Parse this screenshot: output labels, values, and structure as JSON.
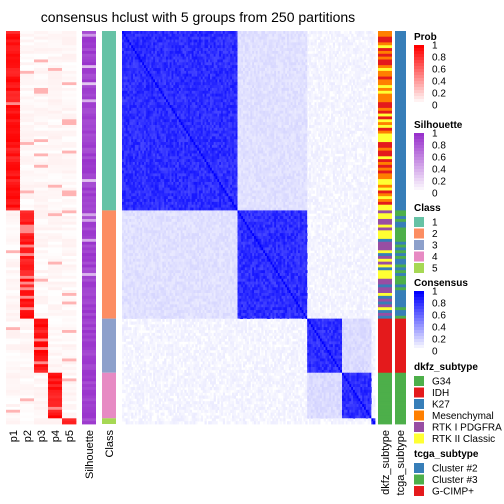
{
  "chart_data": {
    "type": "heatmap",
    "title": "consensus hclust with 5 groups from 250 partitions",
    "column_labels": {
      "prob": [
        "p1",
        "p2",
        "p3",
        "p4",
        "p5"
      ],
      "silhouette": "Silhouette",
      "class": "Class",
      "dkfz": "dkfz_subtype",
      "tcga": "tcga_subtype"
    },
    "groups": [
      {
        "class": "1",
        "n": 63
      },
      {
        "class": "2",
        "n": 38
      },
      {
        "class": "3",
        "n": 19
      },
      {
        "class": "4",
        "n": 16
      },
      {
        "class": "5",
        "n": 2
      }
    ],
    "class_colors": {
      "1": "#66C2A5",
      "2": "#FC8D62",
      "3": "#8DA0CB",
      "4": "#E78AC3",
      "5": "#A6D854"
    },
    "legends": {
      "prob": {
        "title": "Prob",
        "ticks": [
          "1",
          "0.8",
          "0.6",
          "0.4",
          "0.2",
          "0"
        ],
        "low": "#FFFFFF",
        "high": "#FF0000"
      },
      "silhouette": {
        "title": "Silhouette",
        "ticks": [
          "1",
          "0.8",
          "0.6",
          "0.4",
          "0.2",
          "0"
        ],
        "low": "#FFFFFF",
        "high": "#9932CC"
      },
      "class": {
        "title": "Class",
        "items": [
          "1",
          "2",
          "3",
          "4",
          "5"
        ]
      },
      "consensus": {
        "title": "Consensus",
        "ticks": [
          "1",
          "0.8",
          "0.6",
          "0.4",
          "0.2",
          "0"
        ],
        "low": "#FFFFFF",
        "high": "#0000FF"
      },
      "dkfz": {
        "title": "dkfz_subtype",
        "items": [
          {
            "label": "G34",
            "color": "#4DAF4A"
          },
          {
            "label": "IDH",
            "color": "#E41A1C"
          },
          {
            "label": "K27",
            "color": "#377EB8"
          },
          {
            "label": "Mesenchymal",
            "color": "#FF7F00"
          },
          {
            "label": "RTK I PDGFRA",
            "color": "#984EA3"
          },
          {
            "label": "RTK II Classic",
            "color": "#FFFF33"
          }
        ]
      },
      "tcga": {
        "title": "tcga_subtype",
        "items": [
          {
            "label": "Cluster #2",
            "color": "#377EB8"
          },
          {
            "label": "Cluster #3",
            "color": "#4DAF4A"
          },
          {
            "label": "G-CIMP+",
            "color": "#E41A1C"
          }
        ]
      }
    }
  }
}
